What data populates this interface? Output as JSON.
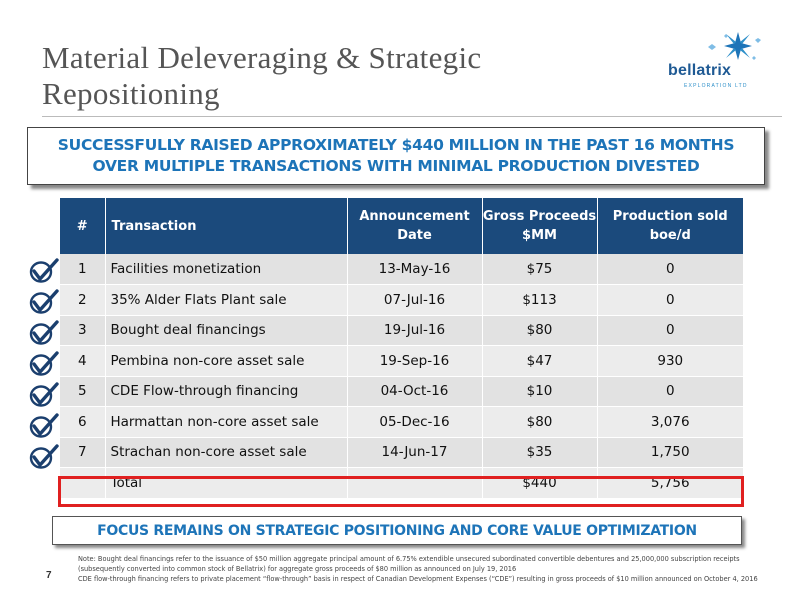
{
  "slide": {
    "title": "Material Deleveraging & Strategic Repositioning",
    "page_number": "7"
  },
  "logo": {
    "name": "bellatrix",
    "tagline": "EXPLORATION LTD"
  },
  "banner": {
    "text": "SUCCESSFULLY RAISED APPROXIMATELY $440 MILLION IN THE PAST 16 MONTHS OVER MULTIPLE TRANSACTIONS WITH MINIMAL PRODUCTION DIVESTED"
  },
  "table": {
    "headers": {
      "num": "#",
      "transaction": "Transaction",
      "announcement": "Announcement Date",
      "gross": "Gross Proceeds $MM",
      "production": "Production sold boe/d"
    },
    "rows": [
      {
        "num": "1",
        "transaction": "Facilities monetization",
        "date": "13-May-16",
        "gross": "$75",
        "production": "0"
      },
      {
        "num": "2",
        "transaction": "35% Alder Flats Plant sale",
        "date": "07-Jul-16",
        "gross": "$113",
        "production": "0"
      },
      {
        "num": "3",
        "transaction": "Bought deal financings",
        "date": "19-Jul-16",
        "gross": "$80",
        "production": "0"
      },
      {
        "num": "4",
        "transaction": "Pembina non-core asset sale",
        "date": "19-Sep-16",
        "gross": "$47",
        "production": "930"
      },
      {
        "num": "5",
        "transaction": "CDE Flow-through financing",
        "date": "04-Oct-16",
        "gross": "$10",
        "production": "0"
      },
      {
        "num": "6",
        "transaction": "Harmattan non-core asset sale",
        "date": "05-Dec-16",
        "gross": "$80",
        "production": "3,076"
      },
      {
        "num": "7",
        "transaction": "Strachan non-core asset sale",
        "date": "14-Jun-17",
        "gross": "$35",
        "production": "1,750"
      }
    ],
    "total": {
      "num": "",
      "transaction": "Total",
      "date": "",
      "gross": "$440",
      "production": "5,756"
    }
  },
  "focus": {
    "text": "FOCUS REMAINS ON STRATEGIC POSITIONING AND CORE VALUE OPTIMIZATION"
  },
  "notes": {
    "line1": "Note: Bought deal financings refer to the issuance of $50 million aggregate principal amount of 6.75% extendible unsecured subordinated convertible debentures and 25,000,000 subscription receipts (subsequently converted into common stock of Bellatrix) for aggregate gross proceeds of $80 million as announced on July 19, 2016",
    "line2": "CDE flow-through financing refers to private placement “flow-through” basis in respect of Canadian Development Expenses (“CDE”) resulting in gross proceeds of $10 million announced on October 4, 2016"
  },
  "colors": {
    "header_bg": "#1b4a7c",
    "accent_blue": "#1d74b8",
    "highlight_red": "#e02020"
  },
  "icons": {
    "row_marker": "checkmark-circle-icon"
  }
}
